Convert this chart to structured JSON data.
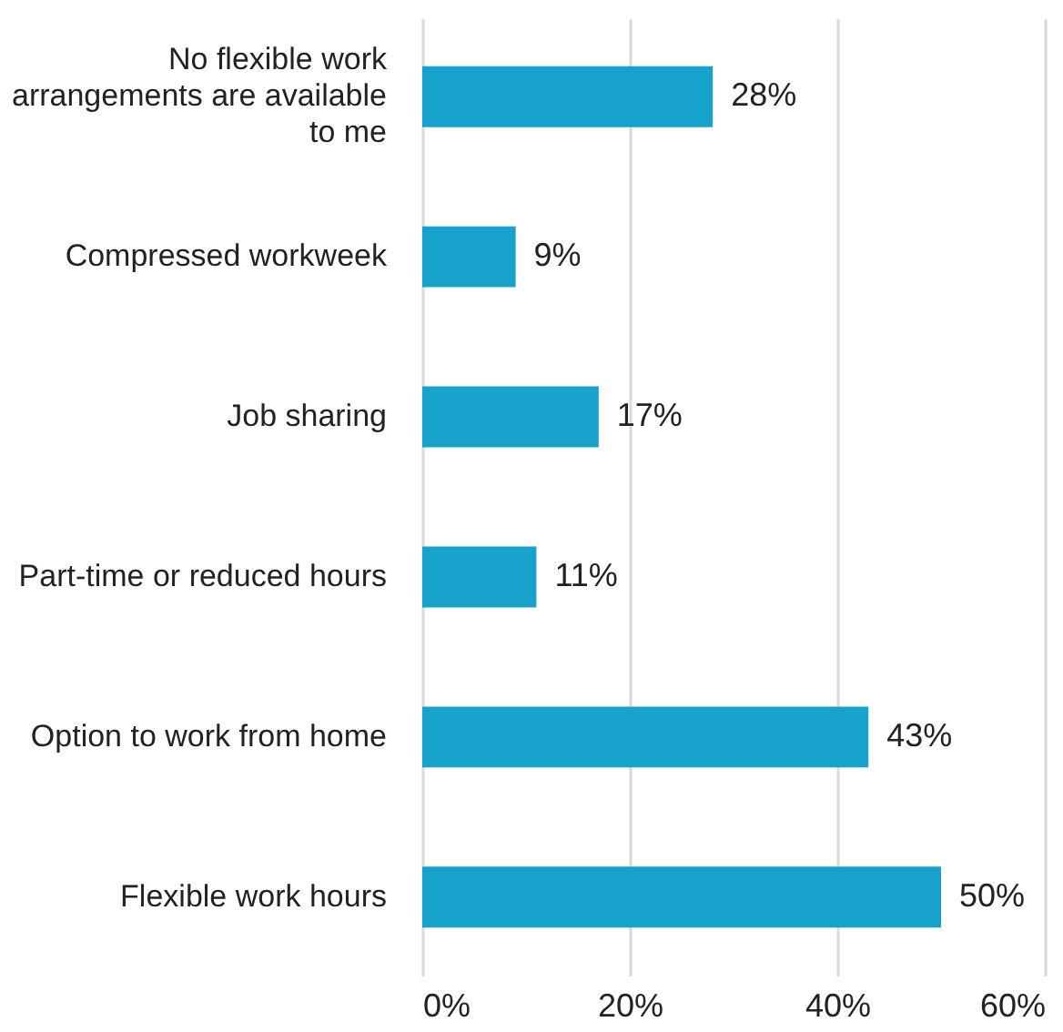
{
  "chart_data": {
    "type": "bar",
    "orientation": "horizontal",
    "categories": [
      "No flexible work arrangements are available to me",
      "Compressed workweek",
      "Job sharing",
      "Part-time or reduced hours",
      "Option to work from home",
      "Flexible work hours"
    ],
    "values": [
      28,
      9,
      17,
      11,
      43,
      50
    ],
    "value_labels": [
      "28%",
      "9%",
      "17%",
      "11%",
      "43%",
      "50%"
    ],
    "color": "#17a2cc",
    "xlim": [
      0,
      60
    ],
    "xticks": [
      {
        "value": 0,
        "label": "0%"
      },
      {
        "value": 20,
        "label": "20%"
      },
      {
        "value": 40,
        "label": "40%"
      },
      {
        "value": 60,
        "label": "60%"
      }
    ],
    "grid": "x"
  }
}
